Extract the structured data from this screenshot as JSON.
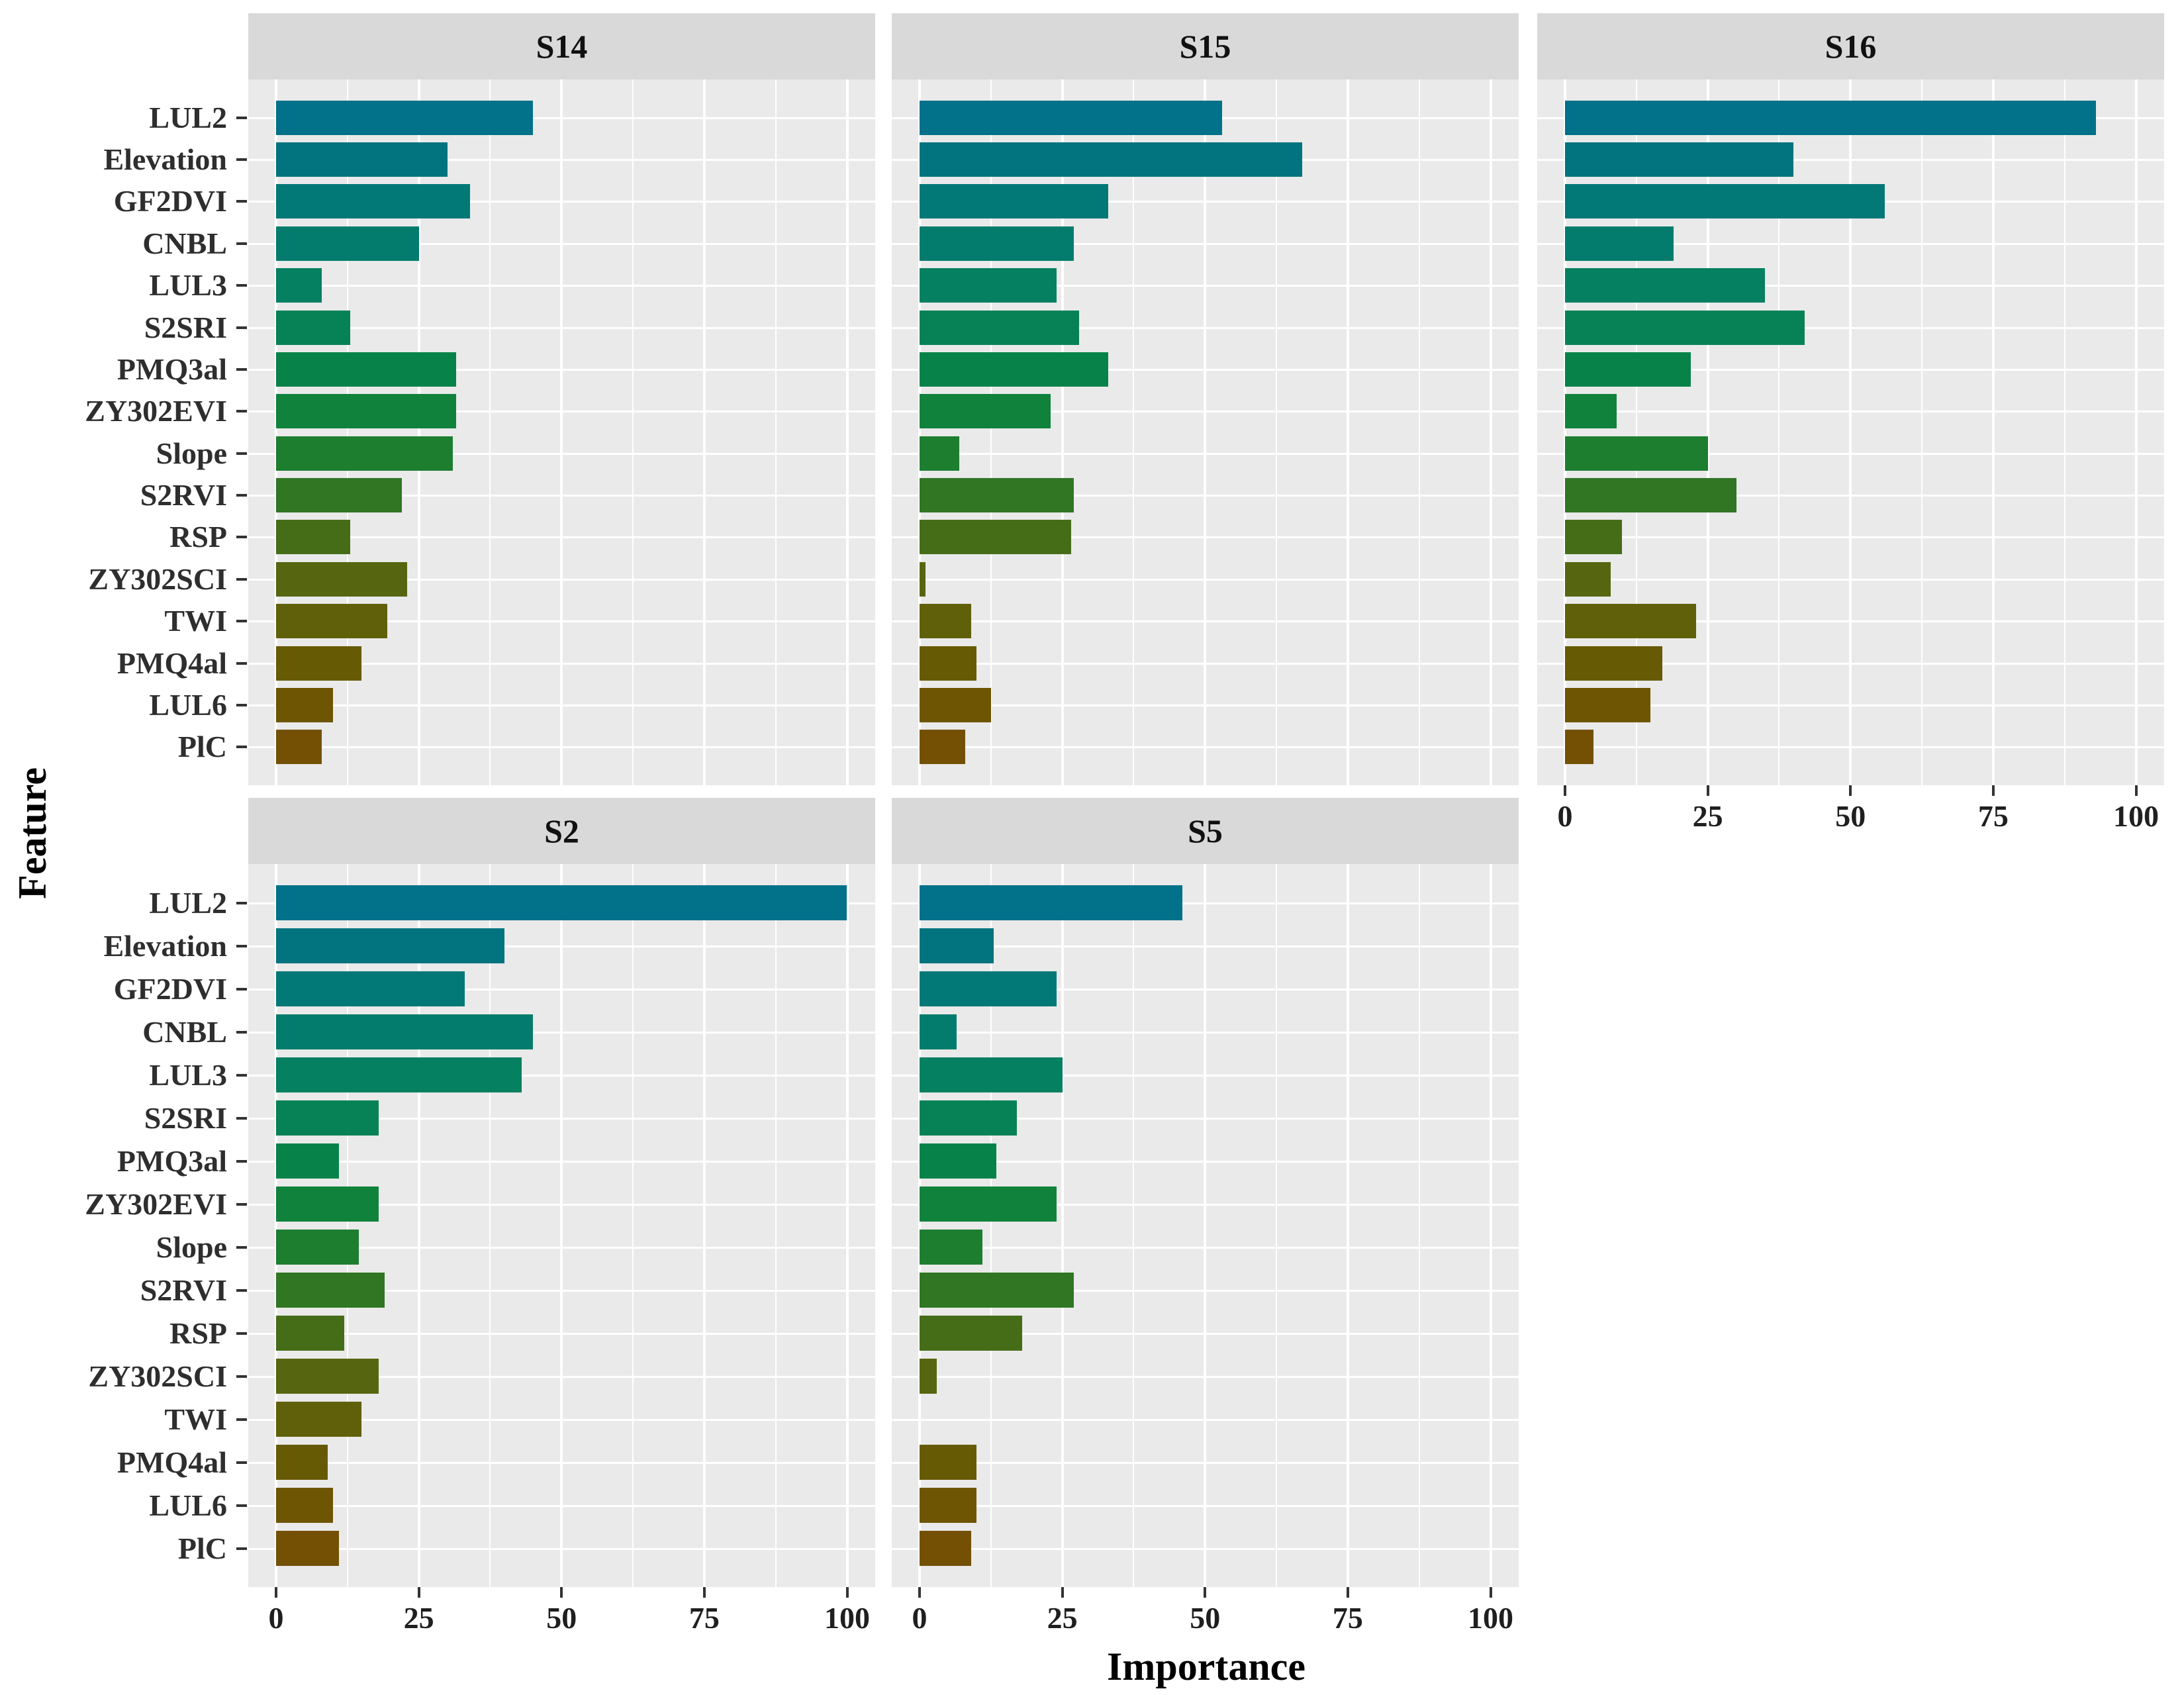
{
  "figure": {
    "x_axis_title": "Importance",
    "y_axis_title": "Feature",
    "panel_background": "#EAEAEA",
    "strip_background": "#D9D9D9",
    "grid_color": "#FFFFFF",
    "tick_color": "#333333",
    "text_color": "#1f1f1f"
  },
  "chart_data": {
    "type": "bar",
    "orientation": "horizontal",
    "facet_titles": [
      "S14",
      "S15",
      "S16",
      "S2",
      "S5"
    ],
    "categories": [
      "LUL2",
      "Elevation",
      "GF2DVI",
      "CNBL",
      "LUL3",
      "S2SRI",
      "PMQ3al",
      "ZY302EVI",
      "Slope",
      "S2RVI",
      "RSP",
      "ZY302SCI",
      "TWI",
      "PMQ4al",
      "LUL6",
      "PlC"
    ],
    "series": [
      {
        "name": "S14",
        "values": [
          45,
          30,
          34,
          25,
          8,
          13,
          31.5,
          31.5,
          31,
          22,
          13,
          23,
          19.5,
          15,
          10,
          8
        ]
      },
      {
        "name": "S15",
        "values": [
          53,
          67,
          33,
          27,
          24,
          28,
          33,
          23,
          7,
          27,
          26.5,
          1,
          9,
          10,
          12.5,
          8
        ]
      },
      {
        "name": "S16",
        "values": [
          93,
          40,
          56,
          19,
          35,
          42,
          22,
          9,
          25,
          30,
          10,
          8,
          23,
          17,
          15,
          5
        ]
      },
      {
        "name": "S2",
        "values": [
          100,
          40,
          33,
          45,
          43,
          18,
          11,
          18,
          14.5,
          19,
          12,
          18,
          15,
          9,
          10,
          11
        ]
      },
      {
        "name": "S5",
        "values": [
          46,
          13,
          24,
          6.5,
          25,
          17,
          13.5,
          24,
          11,
          27,
          18,
          3,
          0,
          10,
          10,
          9
        ]
      }
    ],
    "bar_colors": [
      "#02718A",
      "#01747F",
      "#027877",
      "#037C6D",
      "#058061",
      "#068256",
      "#07834A",
      "#10823C",
      "#1D7E2F",
      "#307623",
      "#456D18",
      "#566610",
      "#5F6009",
      "#675A05",
      "#6E5503",
      "#745004"
    ],
    "xlabel": "Importance",
    "ylabel": "Feature",
    "xlim": [
      0,
      100
    ],
    "x_tick_labels": [
      "0",
      "25",
      "50",
      "75",
      "100"
    ],
    "x_ticks": [
      0,
      25,
      50,
      75,
      100
    ],
    "x_minor_ticks": [
      12.5,
      37.5,
      62.5,
      87.5
    ],
    "grid": "on",
    "legend_position": "none",
    "facet_layout": [
      {
        "series": 0,
        "col": 0,
        "row": 0,
        "y_labels": true,
        "x_axis": false
      },
      {
        "series": 1,
        "col": 1,
        "row": 0,
        "y_labels": false,
        "x_axis": false
      },
      {
        "series": 2,
        "col": 2,
        "row": 0,
        "y_labels": false,
        "x_axis": true
      },
      {
        "series": 3,
        "col": 0,
        "row": 1,
        "y_labels": true,
        "x_axis": true
      },
      {
        "series": 4,
        "col": 1,
        "row": 1,
        "y_labels": false,
        "x_axis": true
      }
    ]
  }
}
